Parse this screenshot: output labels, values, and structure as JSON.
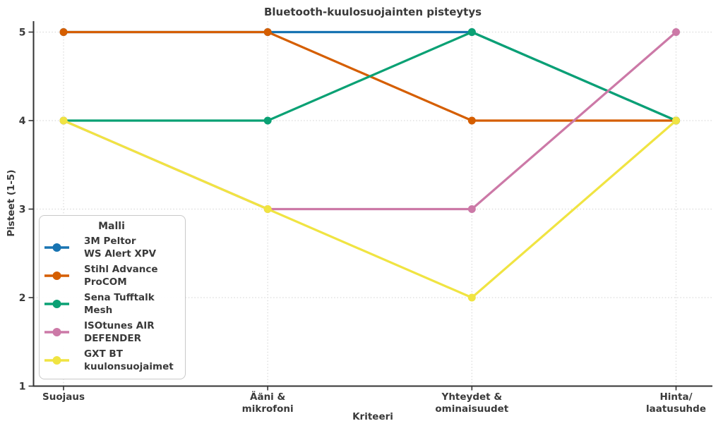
{
  "title": "Bluetooth-kuulosuojainten pisteytys",
  "chart_data": {
    "type": "line",
    "title": "Bluetooth-kuulosuojainten pisteytys",
    "xlabel": "Kriteeri",
    "ylabel": "Pisteet (1-5)",
    "legend_title": "Malli",
    "legend_position": "lower-left",
    "grid": true,
    "grid_style": "dotted",
    "ylim": [
      1,
      5
    ],
    "yticks": [
      1,
      2,
      3,
      4,
      5
    ],
    "categories": [
      "Suojaus",
      "Ääni & mikrofoni",
      "Yhteydet & ominaisuudet",
      "Hinta/laatusuhde"
    ],
    "category_label_lines": [
      [
        "Suojaus"
      ],
      [
        "Ääni &",
        "mikrofoni"
      ],
      [
        "Yhteydet &",
        "ominaisuudet"
      ],
      [
        "Hinta/",
        "laatusuhde"
      ]
    ],
    "series": [
      {
        "name": "3M Peltor WS Alert XPV",
        "label_lines": [
          "3M Peltor",
          "WS Alert XPV"
        ],
        "color": "#1874b2",
        "values": [
          5,
          5,
          5,
          4
        ]
      },
      {
        "name": "Stihl Advance ProCOM",
        "label_lines": [
          "Stihl Advance",
          "ProCOM"
        ],
        "color": "#d55e00",
        "values": [
          5,
          5,
          4,
          4
        ]
      },
      {
        "name": "Sena Tufftalk Mesh",
        "label_lines": [
          "Sena Tufftalk",
          "Mesh"
        ],
        "color": "#0aa174",
        "values": [
          4,
          4,
          5,
          4
        ]
      },
      {
        "name": "ISOtunes AIR DEFENDER",
        "label_lines": [
          "ISOtunes AIR",
          "DEFENDER"
        ],
        "color": "#cc79a7",
        "values": [
          4,
          3,
          3,
          5
        ]
      },
      {
        "name": "GXT BT kuulonsuojaimet",
        "label_lines": [
          "GXT BT",
          "kuulonsuojaimet"
        ],
        "color": "#f0e442",
        "values": [
          4,
          3,
          2,
          4
        ]
      }
    ]
  },
  "style_colors": {
    "text": "#3a3a3a",
    "spine": "#333333",
    "gridline": "#d9d9d9",
    "legend_border": "#c9c9c9",
    "background": "#ffffff"
  }
}
